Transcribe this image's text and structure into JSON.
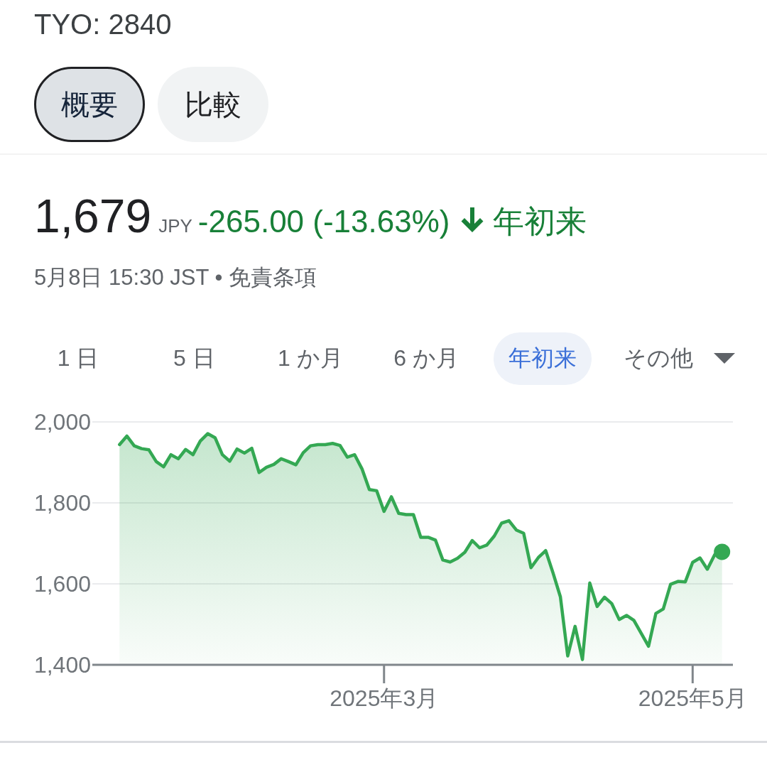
{
  "chart_data": {
    "type": "area",
    "title": "TYO: 2840",
    "subtitle": "5月8日 15:30 JST • 免責条項",
    "annotations": [
      "概要",
      "比較",
      "1,679",
      "JPY",
      "-265.00 (-13.63%)",
      "年初来",
      "1 日",
      "5 日",
      "1 か月",
      "6 か月",
      "年初来",
      "その他"
    ],
    "categories": [
      null,
      null,
      null,
      null,
      null,
      null,
      null,
      null,
      null,
      null,
      null,
      null,
      null,
      null,
      null,
      null,
      null,
      null,
      null,
      null,
      null,
      null,
      null,
      null,
      null,
      null,
      null,
      null,
      null,
      null,
      null,
      null,
      null,
      null,
      null,
      null,
      "2025年3月",
      null,
      null,
      null,
      null,
      null,
      null,
      null,
      null,
      null,
      null,
      null,
      null,
      null,
      null,
      null,
      null,
      null,
      null,
      null,
      null,
      null,
      null,
      null,
      null,
      null,
      null,
      null,
      null,
      null,
      null,
      null,
      null,
      null,
      null,
      null,
      null,
      null,
      null,
      null,
      null,
      null,
      "2025年5月",
      null,
      null,
      null,
      null
    ],
    "series": [
      {
        "color": "#34a853",
        "values": [
          1944,
          1965,
          1941,
          1934,
          1931,
          1902,
          1889,
          1919,
          1909,
          1932,
          1919,
          1953,
          1971,
          1961,
          1919,
          1903,
          1933,
          1923,
          1935,
          1875,
          1888,
          1895,
          1909,
          1902,
          1894,
          1924,
          1941,
          1944,
          1944,
          1947,
          1942,
          1913,
          1919,
          1884,
          1833,
          1830,
          1779,
          1815,
          1774,
          1771,
          1771,
          1715,
          1715,
          1708,
          1659,
          1654,
          1663,
          1678,
          1707,
          1689,
          1696,
          1718,
          1750,
          1756,
          1733,
          1725,
          1640,
          1665,
          1682,
          1627,
          1568,
          1422,
          1495,
          1413,
          1602,
          1544,
          1567,
          1551,
          1512,
          1522,
          1510,
          1478,
          1446,
          1527,
          1538,
          1599,
          1606,
          1605,
          1653,
          1664,
          1636,
          1672,
          1679
        ]
      },
      {
        "type": "scatter",
        "color": "#34a853",
        "values": [
          null,
          null,
          null,
          null,
          null,
          null,
          null,
          null,
          null,
          null,
          null,
          null,
          null,
          null,
          null,
          null,
          null,
          null,
          null,
          null,
          null,
          null,
          null,
          null,
          null,
          null,
          null,
          null,
          null,
          null,
          null,
          null,
          null,
          null,
          null,
          null,
          null,
          null,
          null,
          null,
          null,
          null,
          null,
          null,
          null,
          null,
          null,
          null,
          null,
          null,
          null,
          null,
          null,
          null,
          null,
          null,
          null,
          null,
          null,
          null,
          null,
          null,
          null,
          null,
          null,
          null,
          null,
          null,
          null,
          null,
          null,
          null,
          null,
          null,
          null,
          null,
          null,
          null,
          null,
          null,
          null,
          null,
          1679
        ]
      }
    ],
    "ylim": [
      1400,
      2000
    ],
    "yticks": [
      {
        "value": 1400,
        "label": "1,400"
      },
      {
        "value": 1600,
        "label": "1,600"
      },
      {
        "value": 1800,
        "label": "1,800"
      },
      {
        "value": 2000,
        "label": "2,000"
      }
    ],
    "grid": "y"
  }
}
